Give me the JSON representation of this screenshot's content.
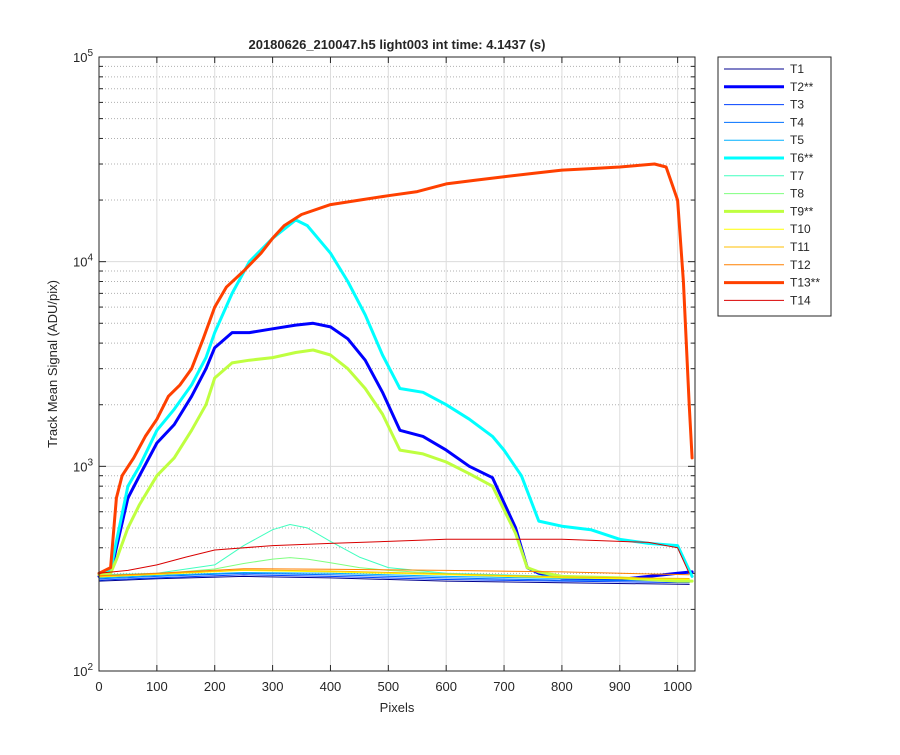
{
  "chart_data": {
    "type": "line",
    "title": "20180626_210047.h5  light003   int time: 4.1437 (s)",
    "xlabel": "Pixels",
    "ylabel": "Track Mean Signal (ADU/pix)",
    "xlim": [
      0,
      1030
    ],
    "ylim": [
      100,
      100000
    ],
    "yscale": "log",
    "grid": true,
    "minor_grid": true,
    "legend_position": "outside-right",
    "x_ticks": [
      0,
      100,
      200,
      300,
      400,
      500,
      600,
      700,
      800,
      900,
      1000
    ],
    "x_tick_labels": [
      "0",
      "100",
      "200",
      "300",
      "400",
      "500",
      "600",
      "700",
      "800",
      "900",
      "1000"
    ],
    "y_ticks": [
      100,
      1000,
      10000,
      100000
    ],
    "y_tick_labels": [
      {
        "base": "10",
        "exp": "2"
      },
      {
        "base": "10",
        "exp": "3"
      },
      {
        "base": "10",
        "exp": "4"
      },
      {
        "base": "10",
        "exp": "5"
      }
    ],
    "series": [
      {
        "name": "T1",
        "color": "#00008f",
        "width": 1,
        "x": [
          0,
          100,
          250,
          400,
          600,
          800,
          1020
        ],
        "y": [
          275,
          282,
          290,
          285,
          275,
          270,
          265
        ]
      },
      {
        "name": "T2**",
        "color": "#0000ff",
        "width": 3,
        "x": [
          0,
          20,
          30,
          50,
          70,
          100,
          130,
          160,
          185,
          200,
          230,
          260,
          300,
          340,
          370,
          400,
          430,
          460,
          490,
          520,
          560,
          600,
          640,
          680,
          720,
          740,
          760,
          800,
          900,
          1000,
          1025
        ],
        "y": [
          290,
          300,
          400,
          700,
          900,
          1300,
          1600,
          2200,
          3000,
          3800,
          4500,
          4500,
          4700,
          4900,
          5000,
          4800,
          4200,
          3300,
          2300,
          1500,
          1400,
          1200,
          1000,
          880,
          500,
          320,
          300,
          285,
          280,
          300,
          305
        ]
      },
      {
        "name": "T3",
        "color": "#0040ff",
        "width": 1,
        "x": [
          0,
          100,
          250,
          400,
          600,
          800,
          1020
        ],
        "y": [
          278,
          285,
          295,
          290,
          280,
          275,
          270
        ]
      },
      {
        "name": "T4",
        "color": "#0070ff",
        "width": 1,
        "x": [
          0,
          100,
          250,
          400,
          600,
          800,
          1020
        ],
        "y": [
          282,
          290,
          300,
          295,
          285,
          278,
          275
        ]
      },
      {
        "name": "T5",
        "color": "#00b0ff",
        "width": 1,
        "x": [
          0,
          100,
          250,
          400,
          600,
          800,
          1020
        ],
        "y": [
          285,
          293,
          303,
          300,
          290,
          283,
          280
        ]
      },
      {
        "name": "T6**",
        "color": "#00ffff",
        "width": 3,
        "x": [
          0,
          20,
          30,
          50,
          70,
          100,
          130,
          160,
          185,
          200,
          230,
          260,
          300,
          340,
          360,
          400,
          430,
          460,
          490,
          520,
          560,
          600,
          640,
          680,
          700,
          730,
          760,
          800,
          850,
          900,
          950,
          1000,
          1025
        ],
        "y": [
          300,
          310,
          430,
          800,
          1000,
          1500,
          1900,
          2500,
          3400,
          4500,
          7000,
          10000,
          13000,
          16000,
          15000,
          11000,
          8000,
          5500,
          3500,
          2400,
          2300,
          2000,
          1700,
          1400,
          1200,
          900,
          540,
          510,
          490,
          440,
          420,
          410,
          290
        ]
      },
      {
        "name": "T7",
        "color": "#40ffbf",
        "width": 1,
        "x": [
          0,
          100,
          200,
          250,
          300,
          330,
          360,
          400,
          450,
          500,
          600,
          800,
          1020
        ],
        "y": [
          295,
          300,
          330,
          410,
          490,
          520,
          500,
          430,
          360,
          320,
          300,
          290,
          280
        ]
      },
      {
        "name": "T8",
        "color": "#7fff7f",
        "width": 1,
        "x": [
          0,
          100,
          200,
          250,
          300,
          330,
          360,
          400,
          450,
          500,
          600,
          800,
          1020
        ],
        "y": [
          292,
          298,
          315,
          335,
          352,
          358,
          352,
          338,
          320,
          310,
          298,
          288,
          278
        ]
      },
      {
        "name": "T9**",
        "color": "#bfff40",
        "width": 3,
        "x": [
          0,
          20,
          30,
          50,
          70,
          100,
          130,
          160,
          185,
          200,
          230,
          260,
          300,
          340,
          370,
          400,
          430,
          460,
          490,
          520,
          560,
          600,
          640,
          680,
          720,
          740,
          760,
          800,
          900,
          1000,
          1025
        ],
        "y": [
          295,
          300,
          350,
          500,
          650,
          900,
          1100,
          1500,
          2000,
          2700,
          3200,
          3300,
          3400,
          3600,
          3700,
          3500,
          3000,
          2400,
          1800,
          1200,
          1150,
          1050,
          920,
          800,
          470,
          320,
          305,
          290,
          285,
          275,
          275
        ]
      },
      {
        "name": "T10",
        "color": "#ffff00",
        "width": 1,
        "x": [
          0,
          100,
          250,
          400,
          600,
          800,
          1020
        ],
        "y": [
          288,
          296,
          310,
          305,
          295,
          285,
          280
        ]
      },
      {
        "name": "T11",
        "color": "#ffbf00",
        "width": 1,
        "x": [
          0,
          100,
          250,
          400,
          600,
          800,
          1020
        ],
        "y": [
          290,
          298,
          312,
          308,
          298,
          288,
          283
        ]
      },
      {
        "name": "T12",
        "color": "#ff8000",
        "width": 1,
        "x": [
          0,
          100,
          250,
          400,
          600,
          800,
          1020
        ],
        "y": [
          292,
          300,
          316,
          314,
          310,
          305,
          295
        ]
      },
      {
        "name": "T13**",
        "color": "#ff4000",
        "width": 3,
        "x": [
          0,
          20,
          30,
          40,
          60,
          80,
          100,
          120,
          140,
          160,
          180,
          200,
          220,
          250,
          280,
          300,
          320,
          350,
          400,
          450,
          500,
          550,
          600,
          650,
          700,
          750,
          800,
          850,
          900,
          930,
          960,
          980,
          1000,
          1010,
          1020,
          1025
        ],
        "y": [
          300,
          320,
          700,
          900,
          1100,
          1400,
          1700,
          2200,
          2500,
          3000,
          4200,
          6000,
          7500,
          9000,
          11000,
          13000,
          15000,
          17000,
          19000,
          20000,
          21000,
          22000,
          24000,
          25000,
          26000,
          27000,
          28000,
          28500,
          29000,
          29500,
          30000,
          29000,
          20000,
          8000,
          2000,
          1100
        ]
      },
      {
        "name": "T14",
        "color": "#d90000",
        "width": 1,
        "x": [
          0,
          50,
          100,
          150,
          200,
          300,
          400,
          500,
          600,
          700,
          800,
          900,
          950,
          1000,
          1020
        ],
        "y": [
          300,
          310,
          330,
          360,
          390,
          410,
          420,
          430,
          440,
          440,
          440,
          430,
          425,
          400,
          300
        ]
      }
    ]
  }
}
